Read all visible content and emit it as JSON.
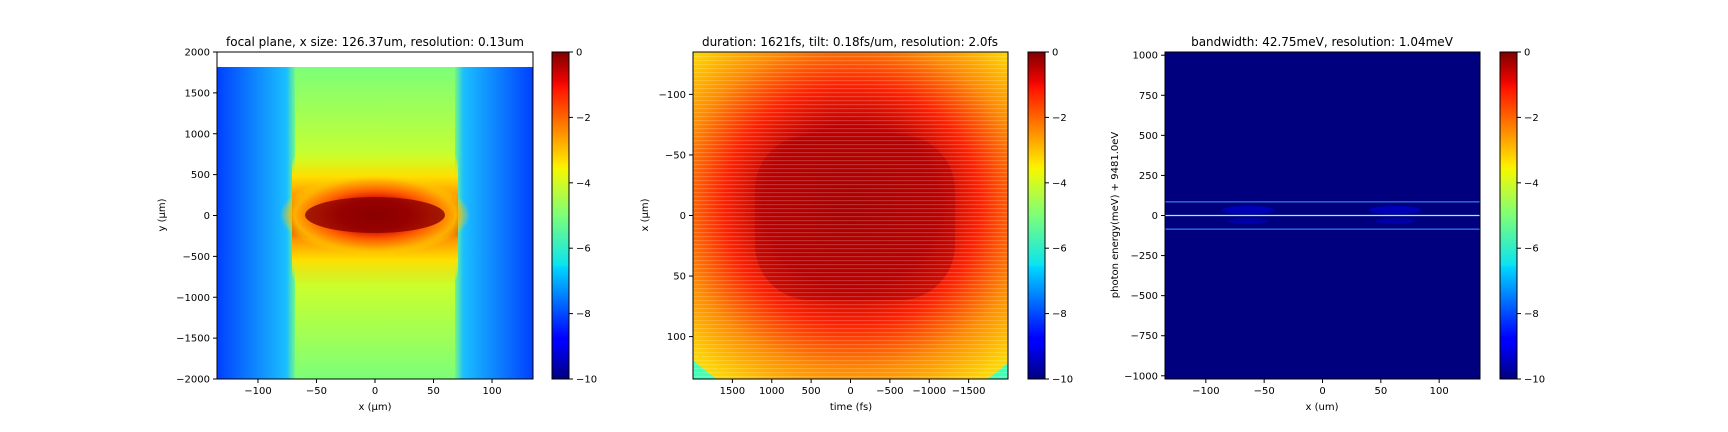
{
  "chart_data": [
    {
      "type": "heatmap",
      "title": "focal plane, x size: 126.37um, resolution: 0.13um",
      "xlabel": "x (μm)",
      "ylabel": "y (μm)",
      "xlim": [
        -135,
        135
      ],
      "ylim": [
        -2000,
        2000
      ],
      "x_ticks": [
        -100,
        -50,
        0,
        50,
        100
      ],
      "x_tick_labels": [
        "−100",
        "−50",
        "0",
        "50",
        "100"
      ],
      "y_ticks": [
        -2000,
        -1500,
        -1000,
        -500,
        0,
        500,
        1000,
        1500,
        2000
      ],
      "y_tick_labels": [
        "−2000",
        "−1500",
        "−1000",
        "−500",
        "0",
        "500",
        "1000",
        "1500",
        "2000"
      ],
      "y_data_top": 1820,
      "colorbar": {
        "range": [
          -10,
          0
        ],
        "ticks": [
          0,
          -2,
          -4,
          -6,
          -8,
          -10
        ],
        "tick_labels": [
          "0",
          "−2",
          "−4",
          "−6",
          "−8",
          "−10"
        ],
        "colormap": "jet"
      },
      "colormap": "jet"
    },
    {
      "type": "heatmap",
      "title": "duration: 1621fs, tilt: 0.18fs/um, resolution: 2.0fs",
      "xlabel": "time (fs)",
      "ylabel": "x (μm)",
      "xlim": [
        2000,
        -2000
      ],
      "ylim": [
        -135,
        135
      ],
      "y_inverted": true,
      "x_ticks": [
        1500,
        1000,
        500,
        0,
        -500,
        -1000,
        -1500
      ],
      "x_tick_labels": [
        "1500",
        "1000",
        "500",
        "0",
        "−500",
        "−1000",
        "−1500"
      ],
      "y_ticks": [
        -100,
        -50,
        0,
        50,
        100
      ],
      "y_tick_labels": [
        "−100",
        "−50",
        "0",
        "50",
        "100"
      ],
      "colorbar": {
        "range": [
          -10,
          0
        ],
        "ticks": [
          0,
          -2,
          -4,
          -6,
          -8,
          -10
        ],
        "tick_labels": [
          "0",
          "−2",
          "−4",
          "−6",
          "−8",
          "−10"
        ],
        "colormap": "jet"
      },
      "colormap": "jet"
    },
    {
      "type": "heatmap",
      "title": "bandwidth: 42.75meV, resolution: 1.04meV",
      "xlabel": "x (um)",
      "ylabel": "photon energy(meV) + 9481.0eV",
      "xlim": [
        -135,
        135
      ],
      "ylim": [
        -1020,
        1020
      ],
      "x_ticks": [
        -100,
        -50,
        0,
        50,
        100
      ],
      "x_tick_labels": [
        "−100",
        "−50",
        "0",
        "50",
        "100"
      ],
      "y_ticks": [
        -1000,
        -750,
        -500,
        -250,
        0,
        250,
        500,
        750,
        1000
      ],
      "y_tick_labels": [
        "−1000",
        "−750",
        "−500",
        "−250",
        "0",
        "250",
        "500",
        "750",
        "1000"
      ],
      "lines_energy": [
        -85,
        0,
        85
      ],
      "colorbar": {
        "range": [
          -10,
          0
        ],
        "ticks": [
          0,
          -2,
          -4,
          -6,
          -8,
          -10
        ],
        "tick_labels": [
          "0",
          "−2",
          "−4",
          "−6",
          "−8",
          "−10"
        ],
        "colormap": "jet"
      },
      "colormap": "jet"
    }
  ]
}
